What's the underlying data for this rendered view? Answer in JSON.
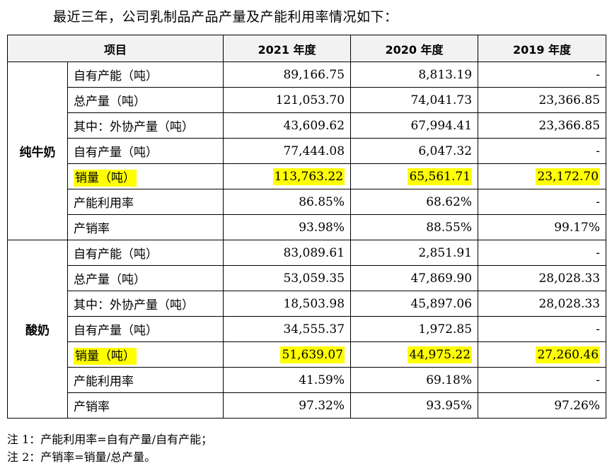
{
  "intro": "最近三年，公司乳制品产品产量及产能利用率情况如下：",
  "table": {
    "headers": [
      "项目",
      "2021 年度",
      "2020 年度",
      "2019 年度"
    ],
    "groups": [
      {
        "name": "纯牛奶",
        "rows": [
          {
            "label": "自有产能（吨）",
            "v2021": "89,166.75",
            "v2020": "8,813.19",
            "v2019": "-"
          },
          {
            "label": "总产量（吨）",
            "v2021": "121,053.70",
            "v2020": "74,041.73",
            "v2019": "23,366.85"
          },
          {
            "label": "其中：外协产量（吨）",
            "v2021": "43,609.62",
            "v2020": "67,994.41",
            "v2019": "23,366.85"
          },
          {
            "label": "自有产量（吨）",
            "v2021": "77,444.08",
            "v2020": "6,047.32",
            "v2019": "-"
          },
          {
            "label": "销量（吨）",
            "v2021": "113,763.22",
            "v2020": "65,561.71",
            "v2019": "23,172.70"
          },
          {
            "label": "产能利用率",
            "v2021": "86.85%",
            "v2020": "68.62%",
            "v2019": "-"
          },
          {
            "label": "产销率",
            "v2021": "93.98%",
            "v2020": "88.55%",
            "v2019": "99.17%"
          }
        ]
      },
      {
        "name": "酸奶",
        "rows": [
          {
            "label": "自有产能（吨）",
            "v2021": "83,089.61",
            "v2020": "2,851.91",
            "v2019": "-"
          },
          {
            "label": "总产量（吨）",
            "v2021": "53,059.35",
            "v2020": "47,869.90",
            "v2019": "28,028.33"
          },
          {
            "label": "其中：外协产量（吨）",
            "v2021": "18,503.98",
            "v2020": "45,897.06",
            "v2019": "28,028.33"
          },
          {
            "label": "自有产量（吨）",
            "v2021": "34,555.37",
            "v2020": "1,972.85",
            "v2019": "-"
          },
          {
            "label": "销量（吨）",
            "v2021": "51,639.07",
            "v2020": "44,975.22",
            "v2019": "27,260.46"
          },
          {
            "label": "产能利用率",
            "v2021": "41.59%",
            "v2020": "69.18%",
            "v2019": "-"
          },
          {
            "label": "产销率",
            "v2021": "97.32%",
            "v2020": "93.95%",
            "v2019": "97.26%"
          }
        ]
      }
    ]
  },
  "highlight_color": "#ffff00",
  "notes": [
    "注 1：产能利用率=自有产量/自有产能；",
    "注 2：产销率=销量/总产量。"
  ]
}
